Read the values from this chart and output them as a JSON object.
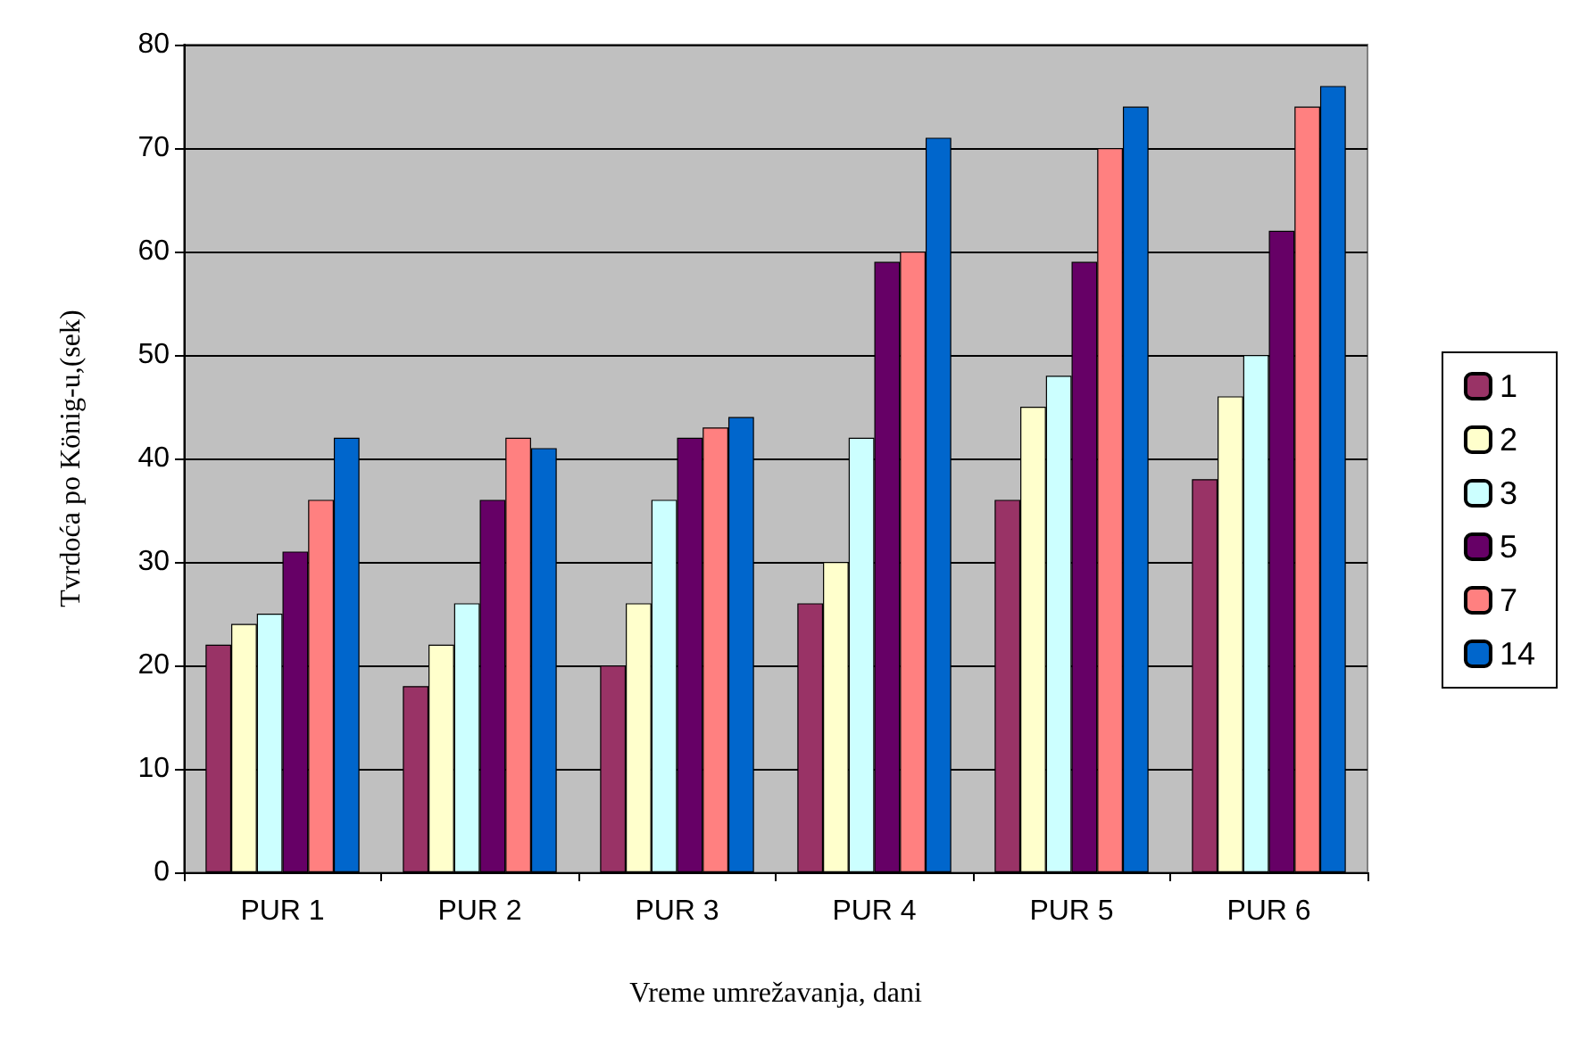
{
  "chart_data": {
    "type": "bar",
    "xlabel": "Vreme umrežavanja, dani",
    "ylabel": "Tvrdoća po König-u,(sek)",
    "categories": [
      "PUR 1",
      "PUR 2",
      "PUR 3",
      "PUR 4",
      "PUR 5",
      "PUR 6"
    ],
    "series": [
      {
        "name": "1",
        "color": "#993366",
        "values": [
          22,
          18,
          20,
          26,
          36,
          38
        ]
      },
      {
        "name": "2",
        "color": "#ffffcc",
        "values": [
          24,
          22,
          26,
          30,
          45,
          46
        ]
      },
      {
        "name": "3",
        "color": "#ccffff",
        "values": [
          25,
          26,
          36,
          42,
          48,
          50
        ]
      },
      {
        "name": "5",
        "color": "#660066",
        "values": [
          31,
          36,
          42,
          59,
          59,
          62
        ]
      },
      {
        "name": "7",
        "color": "#ff8080",
        "values": [
          36,
          42,
          43,
          60,
          70,
          74
        ]
      },
      {
        "name": "14",
        "color": "#0066cc",
        "values": [
          42,
          41,
          44,
          71,
          74,
          76
        ]
      }
    ],
    "ylim": [
      0,
      80
    ],
    "yticks": [
      0,
      10,
      20,
      30,
      40,
      50,
      60,
      70,
      80
    ],
    "grid": "y",
    "legend": "right"
  }
}
